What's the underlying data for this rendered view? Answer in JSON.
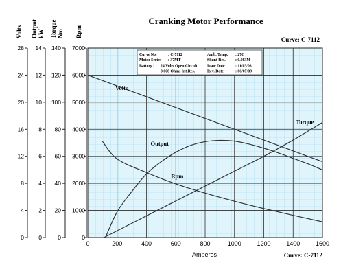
{
  "chart_data": {
    "type": "line",
    "title": "Cranking Motor Performance",
    "curve_label": "Curve: C-7112",
    "xlabel": "Amperes",
    "x_ticks": [
      0,
      200,
      400,
      600,
      800,
      1000,
      1200,
      1400,
      1600
    ],
    "xlim": [
      0,
      1600
    ],
    "grid": true,
    "colors": {
      "grid_fill": "#dff4fb",
      "grid_minor": "#9fd6ee",
      "grid_major": "#2d2d2d",
      "curve": "#333333"
    },
    "axes": [
      {
        "name": "Volts",
        "label": "Volts",
        "range": [
          0,
          28
        ],
        "ticks": [
          0,
          4,
          8,
          12,
          16,
          20,
          24,
          28
        ]
      },
      {
        "name": "Output",
        "label": [
          "Output",
          "kW"
        ],
        "range": [
          0,
          14
        ],
        "ticks": [
          0,
          2,
          4,
          6,
          8,
          10,
          12,
          14
        ]
      },
      {
        "name": "Torque",
        "label": [
          "Torque",
          "Nm"
        ],
        "range": [
          0,
          140
        ],
        "ticks": [
          0,
          20,
          40,
          60,
          80,
          100,
          120,
          140
        ]
      },
      {
        "name": "Rpm",
        "label": "Rpm",
        "range": [
          0,
          7000
        ],
        "ticks": [
          0,
          1000,
          2000,
          3000,
          4000,
          5000,
          6000,
          7000
        ]
      }
    ],
    "series": [
      {
        "name": "Volts",
        "axis": "Volts",
        "label_at": [
          230,
          21.8
        ],
        "x": [
          0,
          200,
          400,
          600,
          800,
          1000,
          1200,
          1400,
          1600
        ],
        "y": [
          24,
          22.4,
          20.8,
          19.2,
          17.6,
          16.0,
          14.4,
          12.8,
          11.2
        ]
      },
      {
        "name": "Output",
        "axis": "Output",
        "label_at": [
          490,
          6.8
        ],
        "x": [
          120,
          200,
          300,
          400,
          500,
          600,
          700,
          800,
          900,
          1000,
          1100,
          1200,
          1300,
          1400,
          1500,
          1600
        ],
        "y": [
          0,
          1.9,
          3.4,
          4.7,
          5.6,
          6.3,
          6.8,
          7.08,
          7.18,
          7.12,
          6.9,
          6.6,
          6.25,
          5.85,
          5.45,
          5.0
        ]
      },
      {
        "name": "Torque",
        "axis": "Torque",
        "label_at": [
          1480,
          84
        ],
        "x": [
          110,
          200,
          400,
          600,
          800,
          1000,
          1200,
          1400,
          1600
        ],
        "y": [
          0,
          5,
          16,
          27,
          38,
          49,
          60,
          72,
          85
        ]
      },
      {
        "name": "Rpm",
        "axis": "Rpm",
        "label_at": [
          610,
          2200
        ],
        "x": [
          100,
          200,
          400,
          600,
          800,
          1000,
          1200,
          1400,
          1600
        ],
        "y": [
          3550,
          2900,
          2400,
          1980,
          1640,
          1340,
          1070,
          820,
          580
        ]
      }
    ],
    "info_box": [
      [
        "Curve No.",
        ": C-7112",
        "Amb. Temp.",
        ": 27C"
      ],
      [
        "Motor Series",
        ": 37MT",
        "Shunt Res.",
        ": 0.083M"
      ],
      [
        "Battery :",
        "24 Volts Open Circuit",
        "Issue Date",
        ": 11/03/03"
      ],
      [
        "",
        "0.008 Ohms Int.Res.",
        "Rev. Date",
        ": 06/07/09"
      ]
    ]
  }
}
